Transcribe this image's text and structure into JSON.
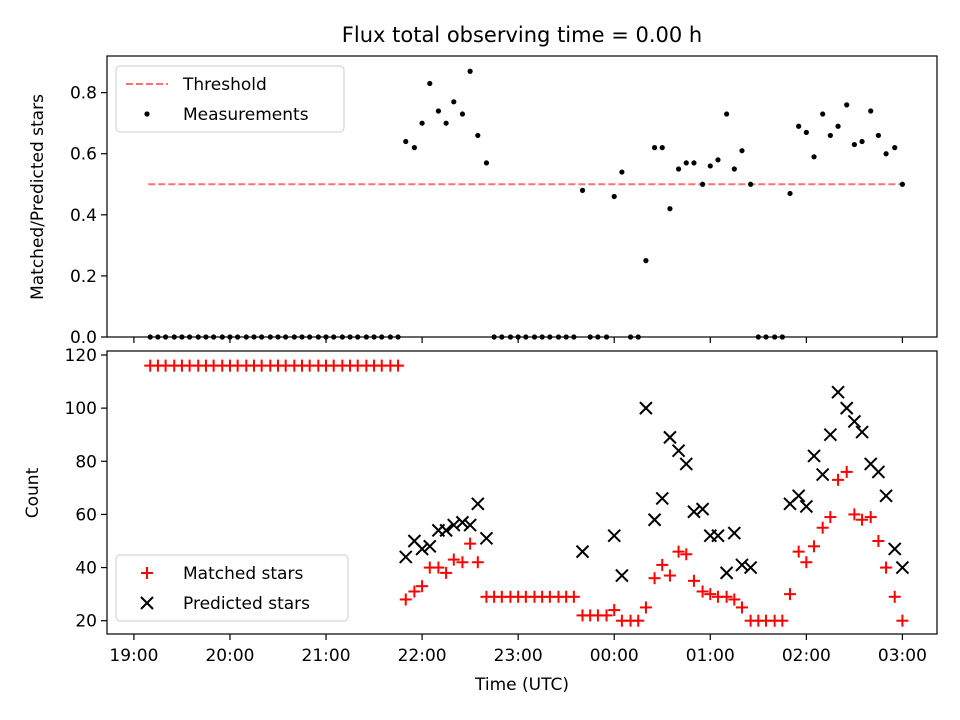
{
  "chart_data": {
    "type": "scatter",
    "title": "Flux total observing time = 0.00 h",
    "xlabel": "Time (UTC)",
    "x_ticks": [
      "19:00",
      "20:00",
      "21:00",
      "22:00",
      "23:00",
      "00:00",
      "01:00",
      "02:00",
      "03:00"
    ],
    "x_range_hours": [
      18.72,
      27.36
    ],
    "panels": [
      {
        "name": "ratio",
        "ylabel": "Matched/Predicted stars",
        "ylim": [
          0,
          0.92
        ],
        "yticks": [
          "0.0",
          "0.2",
          "0.4",
          "0.6",
          "0.8"
        ],
        "legend": {
          "placement": "upper left"
        },
        "series": [
          {
            "name": "Threshold",
            "kind": "line",
            "style": "dashed",
            "color": "#ff7070",
            "x": [
              19.15,
              27.0
            ],
            "y": [
              0.5,
              0.5
            ]
          },
          {
            "name": "Measurements",
            "kind": "dot",
            "color": "#000000",
            "x": [
              19.17,
              19.25,
              19.33,
              19.42,
              19.5,
              19.58,
              19.67,
              19.75,
              19.83,
              19.92,
              20.0,
              20.08,
              20.17,
              20.25,
              20.33,
              20.42,
              20.5,
              20.58,
              20.67,
              20.75,
              20.83,
              20.92,
              21.0,
              21.08,
              21.17,
              21.25,
              21.33,
              21.42,
              21.5,
              21.58,
              21.67,
              21.75,
              21.83,
              21.92,
              22.0,
              22.08,
              22.17,
              22.25,
              22.33,
              22.42,
              22.5,
              22.58,
              22.67,
              22.75,
              22.83,
              22.92,
              23.0,
              23.08,
              23.17,
              23.25,
              23.33,
              23.42,
              23.5,
              23.58,
              23.67,
              23.75,
              23.83,
              23.92,
              24.0,
              24.08,
              24.17,
              24.25,
              24.33,
              24.42,
              24.5,
              24.58,
              24.67,
              24.75,
              24.83,
              24.92,
              25.0,
              25.08,
              25.17,
              25.25,
              25.33,
              25.42,
              25.5,
              25.58,
              25.67,
              25.75,
              25.83,
              25.92,
              26.0,
              26.08,
              26.17,
              26.25,
              26.33,
              26.42,
              26.5,
              26.58,
              26.67,
              26.75,
              26.83,
              26.92,
              27.0
            ],
            "y": [
              0,
              0,
              0,
              0,
              0,
              0,
              0,
              0,
              0,
              0,
              0,
              0,
              0,
              0,
              0,
              0,
              0,
              0,
              0,
              0,
              0,
              0,
              0,
              0,
              0,
              0,
              0,
              0,
              0,
              0,
              0,
              0,
              0.64,
              0.62,
              0.7,
              0.83,
              0.74,
              0.7,
              0.77,
              0.73,
              0.87,
              0.66,
              0.57,
              0,
              0,
              0,
              0,
              0,
              0,
              0,
              0,
              0,
              0,
              0,
              0.48,
              0,
              0,
              0,
              0.46,
              0.54,
              0,
              0,
              0.25,
              0.62,
              0.62,
              0.42,
              0.55,
              0.57,
              0.57,
              0.5,
              0.56,
              0.58,
              0.73,
              0.55,
              0.61,
              0.5,
              0,
              0,
              0,
              0,
              0.47,
              0.69,
              0.67,
              0.59,
              0.73,
              0.66,
              0.69,
              0.76,
              0.63,
              0.64,
              0.74,
              0.66,
              0.6,
              0.62,
              0.5
            ]
          }
        ]
      },
      {
        "name": "counts",
        "ylabel": "Count",
        "ylim": [
          15,
          121.5
        ],
        "yticks": [
          "20",
          "40",
          "60",
          "80",
          "100",
          "120"
        ],
        "legend": {
          "placement": "lower left"
        },
        "series": [
          {
            "name": "Matched stars",
            "kind": "plus",
            "color": "#ff0000",
            "x": [
              19.17,
              19.25,
              19.33,
              19.42,
              19.5,
              19.58,
              19.67,
              19.75,
              19.83,
              19.92,
              20.0,
              20.08,
              20.17,
              20.25,
              20.33,
              20.42,
              20.5,
              20.58,
              20.67,
              20.75,
              20.83,
              20.92,
              21.0,
              21.08,
              21.17,
              21.25,
              21.33,
              21.42,
              21.5,
              21.58,
              21.67,
              21.75,
              21.83,
              21.92,
              22.0,
              22.08,
              22.17,
              22.25,
              22.33,
              22.42,
              22.5,
              22.58,
              22.67,
              22.75,
              22.83,
              22.92,
              23.0,
              23.08,
              23.17,
              23.25,
              23.33,
              23.42,
              23.5,
              23.58,
              23.67,
              23.75,
              23.83,
              23.92,
              24.0,
              24.08,
              24.17,
              24.25,
              24.33,
              24.42,
              24.5,
              24.58,
              24.67,
              24.75,
              24.83,
              24.92,
              25.0,
              25.08,
              25.17,
              25.25,
              25.33,
              25.42,
              25.5,
              25.58,
              25.67,
              25.75,
              25.83,
              25.92,
              26.0,
              26.08,
              26.17,
              26.25,
              26.33,
              26.42,
              26.5,
              26.58,
              26.67,
              26.75,
              26.83,
              26.92,
              27.0
            ],
            "y": [
              116,
              116,
              116,
              116,
              116,
              116,
              116,
              116,
              116,
              116,
              116,
              116,
              116,
              116,
              116,
              116,
              116,
              116,
              116,
              116,
              116,
              116,
              116,
              116,
              116,
              116,
              116,
              116,
              116,
              116,
              116,
              116,
              28,
              31,
              33,
              40,
              40,
              38,
              43,
              42,
              49,
              42,
              29,
              29,
              29,
              29,
              29,
              29,
              29,
              29,
              29,
              29,
              29,
              29,
              22,
              22,
              22,
              22,
              24,
              20,
              20,
              20,
              25,
              36,
              41,
              37,
              46,
              45,
              35,
              31,
              30,
              29,
              29,
              28,
              25,
              20,
              20,
              20,
              20,
              20,
              30,
              46,
              42,
              48,
              55,
              59,
              73,
              76,
              60,
              58,
              59,
              50,
              40,
              29,
              20
            ]
          },
          {
            "name": "Predicted stars",
            "kind": "x",
            "color": "#000000",
            "x": [
              21.83,
              21.92,
              22.0,
              22.08,
              22.17,
              22.25,
              22.33,
              22.42,
              22.5,
              22.58,
              22.67,
              23.67,
              24.0,
              24.08,
              24.33,
              24.42,
              24.5,
              24.58,
              24.67,
              24.75,
              24.83,
              24.92,
              25.0,
              25.08,
              25.17,
              25.25,
              25.33,
              25.42,
              25.83,
              25.92,
              26.0,
              26.08,
              26.17,
              26.25,
              26.33,
              26.42,
              26.5,
              26.58,
              26.67,
              26.75,
              26.83,
              26.92,
              27.0
            ],
            "y": [
              44,
              50,
              47,
              48,
              54,
              54,
              56,
              57,
              56,
              64,
              51,
              46,
              52,
              37,
              100,
              58,
              66,
              89,
              84,
              79,
              61,
              62,
              52,
              52,
              38,
              53,
              41,
              40,
              64,
              67,
              63,
              82,
              75,
              90,
              106,
              100,
              95,
              91,
              79,
              76,
              67,
              47,
              40
            ]
          }
        ]
      }
    ]
  }
}
